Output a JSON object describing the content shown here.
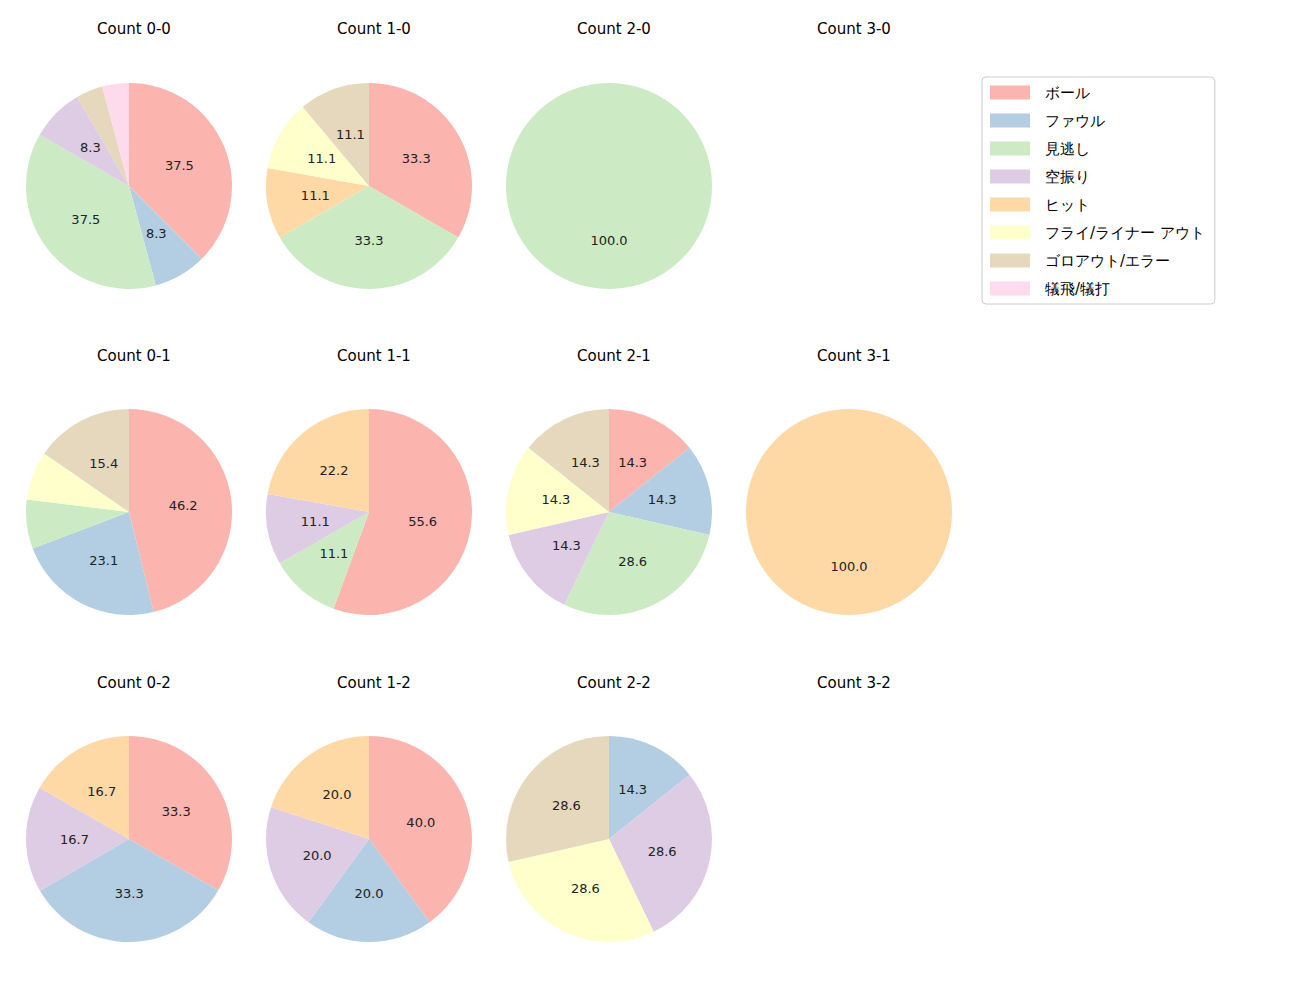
{
  "chart_data": {
    "type": "pie",
    "categories": [
      "ボール",
      "ファウル",
      "見逃し",
      "空振り",
      "ヒット",
      "フライ/ライナー アウト",
      "ゴロアウト/エラー",
      "犠飛/犠打"
    ],
    "colors": [
      "#fbb4ae",
      "#b3cde3",
      "#ccebc5",
      "#decbe4",
      "#fed9a6",
      "#ffffcc",
      "#e5d8bd",
      "#fddaec"
    ],
    "data_labels": true,
    "series": [
      {
        "name": "Count 0-0",
        "values": [
          37.5,
          8.3,
          37.5,
          8.3,
          0,
          0,
          4.2,
          4.2
        ],
        "value_labels": [
          "37.5",
          "8.3",
          "37.5",
          "8.3",
          null,
          null,
          null,
          null
        ]
      },
      {
        "name": "Count 1-0",
        "values": [
          33.3,
          0,
          33.3,
          0,
          11.1,
          11.1,
          11.1,
          0
        ],
        "value_labels": [
          "33.3",
          null,
          "33.3",
          null,
          "11.1",
          "11.1",
          "11.1",
          null
        ]
      },
      {
        "name": "Count 2-0",
        "values": [
          0,
          0,
          100,
          0,
          0,
          0,
          0,
          0
        ],
        "value_labels": [
          null,
          null,
          "100.0",
          null,
          null,
          null,
          null,
          null
        ]
      },
      {
        "name": "Count 3-0",
        "values": [
          null,
          null,
          null,
          null,
          null,
          null,
          null,
          null
        ],
        "value_labels": [
          null,
          null,
          null,
          null,
          null,
          null,
          null,
          null
        ]
      },
      {
        "name": "Count 0-1",
        "values": [
          46.2,
          23.1,
          7.7,
          0,
          0,
          7.7,
          15.4,
          0
        ],
        "value_labels": [
          "46.2",
          "23.1",
          null,
          null,
          null,
          null,
          "15.4",
          null
        ]
      },
      {
        "name": "Count 1-1",
        "values": [
          55.6,
          0,
          11.1,
          11.1,
          22.2,
          0,
          0,
          0
        ],
        "value_labels": [
          "55.6",
          null,
          "11.1",
          "11.1",
          "22.2",
          null,
          null,
          null
        ]
      },
      {
        "name": "Count 2-1",
        "values": [
          14.3,
          14.3,
          28.6,
          14.3,
          0,
          14.3,
          14.3,
          0
        ],
        "value_labels": [
          "14.3",
          "14.3",
          "28.6",
          "14.3",
          null,
          "14.3",
          "14.3",
          null
        ]
      },
      {
        "name": "Count 3-1",
        "values": [
          0,
          0,
          0,
          0,
          100,
          0,
          0,
          0
        ],
        "value_labels": [
          null,
          null,
          null,
          null,
          "100.0",
          null,
          null,
          null
        ]
      },
      {
        "name": "Count 0-2",
        "values": [
          33.3,
          33.3,
          0,
          16.7,
          16.7,
          0,
          0,
          0
        ],
        "value_labels": [
          "33.3",
          "33.3",
          null,
          "16.7",
          "16.7",
          null,
          null,
          null
        ]
      },
      {
        "name": "Count 1-2",
        "values": [
          40.0,
          20.0,
          0,
          20.0,
          20.0,
          0,
          0,
          0
        ],
        "value_labels": [
          "40.0",
          "20.0",
          null,
          "20.0",
          "20.0",
          null,
          null,
          null
        ]
      },
      {
        "name": "Count 2-2",
        "values": [
          0,
          14.3,
          0,
          28.6,
          0,
          28.6,
          28.6,
          0
        ],
        "value_labels": [
          null,
          "14.3",
          null,
          "28.6",
          null,
          "28.6",
          "28.6",
          null
        ]
      },
      {
        "name": "Count 3-2",
        "values": [
          null,
          null,
          null,
          null,
          null,
          null,
          null,
          null
        ],
        "value_labels": [
          null,
          null,
          null,
          null,
          null,
          null,
          null,
          null
        ]
      }
    ]
  }
}
